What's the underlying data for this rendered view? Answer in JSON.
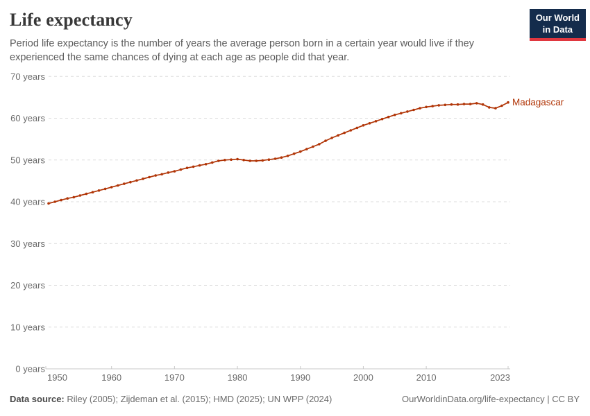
{
  "header": {
    "title": "Life expectancy",
    "subtitle": "Period life expectancy is the number of years the average person born in a certain year would live if they experienced the same chances of dying at each age as people did that year.",
    "logo": {
      "line1": "Our World",
      "line2": "in Data"
    }
  },
  "chart_data": {
    "type": "line",
    "title": "Life expectancy",
    "entity_label": "Madagascar",
    "xlabel": "",
    "ylabel": "",
    "xlim": [
      1950,
      2023
    ],
    "ylim": [
      0,
      70
    ],
    "x_ticks": [
      1950,
      1960,
      1970,
      1980,
      1990,
      2000,
      2010,
      2023
    ],
    "y_ticks": [
      0,
      10,
      20,
      30,
      40,
      50,
      60,
      70
    ],
    "y_tick_suffix": " years",
    "grid": "horizontal-dashed",
    "legend_position": "end-of-line-label",
    "series": [
      {
        "name": "Madagascar",
        "color": "#b13507",
        "x": [
          1950,
          1951,
          1952,
          1953,
          1954,
          1955,
          1956,
          1957,
          1958,
          1959,
          1960,
          1961,
          1962,
          1963,
          1964,
          1965,
          1966,
          1967,
          1968,
          1969,
          1970,
          1971,
          1972,
          1973,
          1974,
          1975,
          1976,
          1977,
          1978,
          1979,
          1980,
          1981,
          1982,
          1983,
          1984,
          1985,
          1986,
          1987,
          1988,
          1989,
          1990,
          1991,
          1992,
          1993,
          1994,
          1995,
          1996,
          1997,
          1998,
          1999,
          2000,
          2001,
          2002,
          2003,
          2004,
          2005,
          2006,
          2007,
          2008,
          2009,
          2010,
          2011,
          2012,
          2013,
          2014,
          2015,
          2016,
          2017,
          2018,
          2019,
          2020,
          2021,
          2022,
          2023
        ],
        "values": [
          39.6,
          40.0,
          40.4,
          40.8,
          41.1,
          41.5,
          41.9,
          42.3,
          42.7,
          43.1,
          43.5,
          43.9,
          44.3,
          44.7,
          45.1,
          45.5,
          45.9,
          46.3,
          46.6,
          47.0,
          47.3,
          47.7,
          48.1,
          48.4,
          48.7,
          49.0,
          49.4,
          49.8,
          50.0,
          50.1,
          50.2,
          50.0,
          49.8,
          49.8,
          49.9,
          50.1,
          50.3,
          50.6,
          51.0,
          51.5,
          52.0,
          52.6,
          53.2,
          53.8,
          54.6,
          55.3,
          55.9,
          56.5,
          57.1,
          57.7,
          58.3,
          58.8,
          59.3,
          59.8,
          60.3,
          60.8,
          61.2,
          61.6,
          62.0,
          62.4,
          62.7,
          62.9,
          63.1,
          63.2,
          63.3,
          63.3,
          63.4,
          63.4,
          63.6,
          63.3,
          62.6,
          62.4,
          63.0,
          63.8
        ]
      }
    ]
  },
  "footer": {
    "source_label": "Data source:",
    "source_text": " Riley (2005); Zijdeman et al. (2015); HMD (2025); UN WPP (2024)",
    "attribution": "OurWorldinData.org/life-expectancy | CC BY"
  },
  "colors": {
    "line": "#b13507",
    "logo_background": "#142c4c",
    "logo_underline": "#e0373f",
    "gridline": "#dcdcdc",
    "axis": "#c8c8c8",
    "axis_text": "#6b6b6b"
  }
}
